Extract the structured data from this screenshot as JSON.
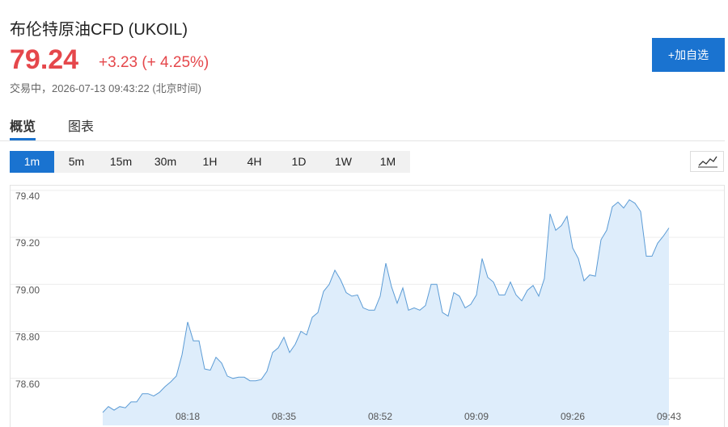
{
  "header": {
    "title": "布伦特原油CFD  (UKOIL)",
    "price": "79.24",
    "change": "+3.23",
    "change_pct": "(+ 4.25%)",
    "status": "交易中，2026-07-13 09:43:22 (北京时间)",
    "button": "+加自选"
  },
  "tabs": [
    "概览",
    "图表"
  ],
  "intervals": [
    "1m",
    "5m",
    "15m",
    "30m",
    "1H",
    "4H",
    "1D",
    "1W",
    "1M"
  ],
  "chart_data": {
    "type": "area",
    "color": "#5b9bd5",
    "fill": "#deedfb",
    "grid": true,
    "categories": [
      null,
      null,
      null,
      null,
      null,
      null,
      null,
      null,
      null,
      null,
      null,
      null,
      null,
      null,
      null,
      "08:18",
      null,
      null,
      null,
      null,
      null,
      null,
      null,
      null,
      null,
      null,
      null,
      null,
      null,
      null,
      null,
      null,
      "08:35",
      null,
      null,
      null,
      null,
      null,
      null,
      null,
      null,
      null,
      null,
      null,
      null,
      null,
      null,
      null,
      null,
      "08:52",
      null,
      null,
      null,
      null,
      null,
      null,
      null,
      null,
      null,
      null,
      null,
      null,
      null,
      null,
      null,
      null,
      "09:09",
      null,
      null,
      null,
      null,
      null,
      null,
      null,
      null,
      null,
      null,
      null,
      null,
      null,
      null,
      null,
      null,
      "09:26",
      null,
      null,
      null,
      null,
      null,
      null,
      null,
      null,
      null,
      null,
      null,
      null,
      null,
      null,
      null,
      null,
      "09:43"
    ],
    "values": [
      78.455,
      78.48,
      78.465,
      78.48,
      78.475,
      78.5,
      78.5,
      78.535,
      78.535,
      78.525,
      78.54,
      78.565,
      78.585,
      78.61,
      78.7,
      78.84,
      78.76,
      78.76,
      78.64,
      78.635,
      78.69,
      78.665,
      78.61,
      78.6,
      78.605,
      78.605,
      78.59,
      78.59,
      78.595,
      78.63,
      78.71,
      78.73,
      78.775,
      78.71,
      78.745,
      78.8,
      78.785,
      78.86,
      78.88,
      78.97,
      79.0,
      79.06,
      79.02,
      78.965,
      78.95,
      78.955,
      78.9,
      78.89,
      78.89,
      78.95,
      79.09,
      78.99,
      78.92,
      78.985,
      78.89,
      78.9,
      78.89,
      78.91,
      79.0,
      79.0,
      78.88,
      78.865,
      78.965,
      78.95,
      78.9,
      78.915,
      78.955,
      79.11,
      79.03,
      79.01,
      78.955,
      78.955,
      79.01,
      78.955,
      78.93,
      78.975,
      78.995,
      78.95,
      79.025,
      79.3,
      79.23,
      79.25,
      79.29,
      79.155,
      79.11,
      79.015,
      79.04,
      79.035,
      79.19,
      79.23,
      79.33,
      79.35,
      79.325,
      79.36,
      79.345,
      79.31,
      79.12,
      79.12,
      79.175,
      79.205,
      79.24
    ],
    "ylim": [
      78.4,
      79.42
    ],
    "yticks": [
      {
        "value": 78.6,
        "label": "78.60"
      },
      {
        "value": 78.8,
        "label": "78.80"
      },
      {
        "value": 79.0,
        "label": "79.00"
      },
      {
        "value": 79.2,
        "label": "79.20"
      },
      {
        "value": 79.4,
        "label": "79.40"
      }
    ]
  }
}
